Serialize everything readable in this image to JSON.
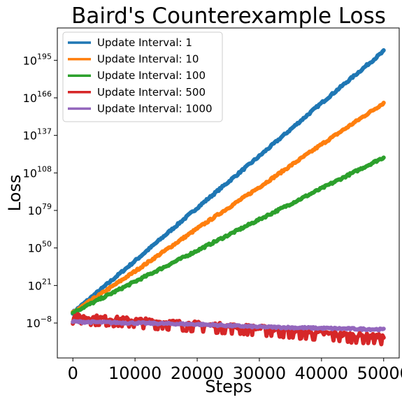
{
  "chart_data": {
    "type": "line",
    "title": "Baird's Counterexample Loss",
    "xlabel": "Steps",
    "ylabel": "Loss",
    "xlim": [
      -2500,
      52500
    ],
    "ylim_log10": [
      -35,
      220
    ],
    "x_ticks": [
      0,
      10000,
      20000,
      30000,
      40000,
      50000
    ],
    "x_tick_labels": [
      "0",
      "10000",
      "20000",
      "30000",
      "40000",
      "50000"
    ],
    "y_ticks_log10": [
      -8,
      21,
      50,
      79,
      108,
      137,
      166,
      195
    ],
    "y_tick_base": "10",
    "y_tick_exponents": [
      "−8",
      "21",
      "50",
      "79",
      "108",
      "137",
      "166",
      "195"
    ],
    "y_scale": "log",
    "grid": false,
    "legend_position": "top-left",
    "series": [
      {
        "name": "Update Interval: 1",
        "color": "#1f77b4",
        "x": [
          0,
          10000,
          20000,
          30000,
          40000,
          50000
        ],
        "log10_y": [
          0,
          40,
          81,
          121,
          162,
          202
        ],
        "noise": 0.8
      },
      {
        "name": "Update Interval: 10",
        "color": "#ff7f0e",
        "x": [
          0,
          10000,
          20000,
          30000,
          40000,
          50000
        ],
        "log10_y": [
          0,
          32,
          65,
          97,
          130,
          162
        ],
        "noise": 0.8
      },
      {
        "name": "Update Interval: 100",
        "color": "#2ca02c",
        "x": [
          0,
          10000,
          20000,
          30000,
          40000,
          50000
        ],
        "log10_y": [
          0,
          24,
          48,
          72,
          96,
          120
        ],
        "noise": 0.8
      },
      {
        "name": "Update Interval: 500",
        "color": "#d62728",
        "x": [
          0,
          10000,
          20000,
          30000,
          40000,
          50000
        ],
        "log10_y": [
          -3,
          -6,
          -9,
          -12,
          -16,
          -19
        ],
        "noise": 2.2
      },
      {
        "name": "Update Interval: 1000",
        "color": "#9467bd",
        "x": [
          0,
          10000,
          20000,
          30000,
          40000,
          50000
        ],
        "log10_y": [
          -7,
          -8,
          -9,
          -11,
          -12,
          -13
        ],
        "noise": 0.7
      }
    ]
  }
}
